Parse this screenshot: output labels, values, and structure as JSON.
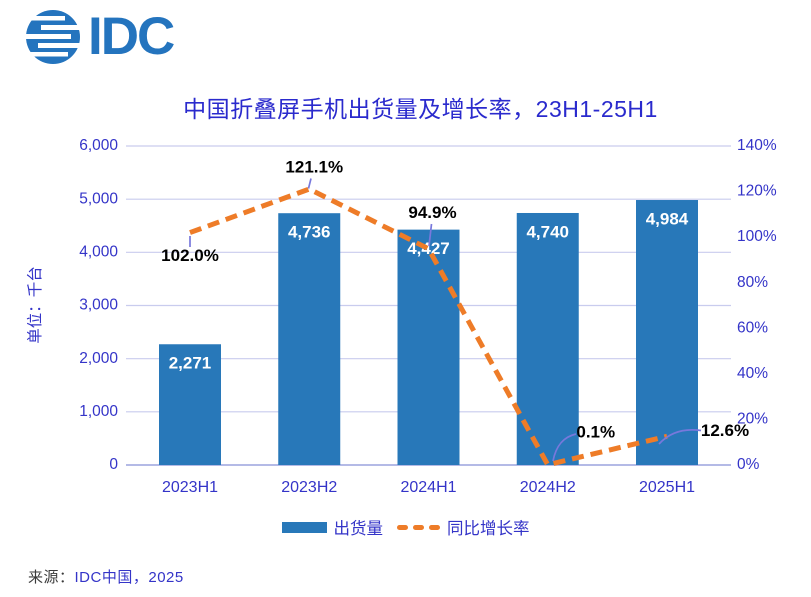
{
  "logo": {
    "text": "IDC"
  },
  "chart_data": {
    "type": "combo",
    "title": "中国折叠屏手机出货量及增长率，23H1-25H1",
    "categories": [
      "2023H1",
      "2023H2",
      "2024H1",
      "2024H2",
      "2025H1"
    ],
    "series": [
      {
        "name": "出货量",
        "type": "bar",
        "axis": "left",
        "values": [
          2271,
          4736,
          4427,
          4740,
          4984
        ],
        "value_labels": [
          "2,271",
          "4,736",
          "4,427",
          "4,740",
          "4,984"
        ],
        "color": "#2878B9"
      },
      {
        "name": "同比增长率",
        "type": "line",
        "style": "dashed",
        "axis": "right",
        "values": [
          102.0,
          121.1,
          94.9,
          0.1,
          12.6
        ],
        "value_labels": [
          "102.0%",
          "121.1%",
          "94.9%",
          "0.1%",
          "12.6%"
        ],
        "color": "#EE7C28"
      }
    ],
    "left_axis": {
      "title": "单位：千台",
      "min": 0,
      "max": 6000,
      "ticks": [
        "6,000",
        "5,000",
        "4,000",
        "3,000",
        "2,000",
        "1,000",
        "0"
      ]
    },
    "right_axis": {
      "min": 0,
      "max": 140,
      "ticks": [
        "140%",
        "120%",
        "100%",
        "80%",
        "60%",
        "40%",
        "20%",
        "0%"
      ]
    },
    "grid": true,
    "legend_position": "bottom"
  },
  "source": {
    "prefix": "来源：",
    "label": "IDC中国，2025"
  },
  "colors": {
    "bar": "#2878B9",
    "line": "#EE7C28",
    "axis_text": "#3434C8",
    "title_text": "#2A2ACD",
    "grid": "#C9CCEE",
    "baseline": "#A9B0E2",
    "leader": "#7878DC",
    "data_label": "#000000",
    "bar_label": "#FFFFFF",
    "logo": "#2474BE",
    "source_prefix": "#3A3A3A"
  }
}
